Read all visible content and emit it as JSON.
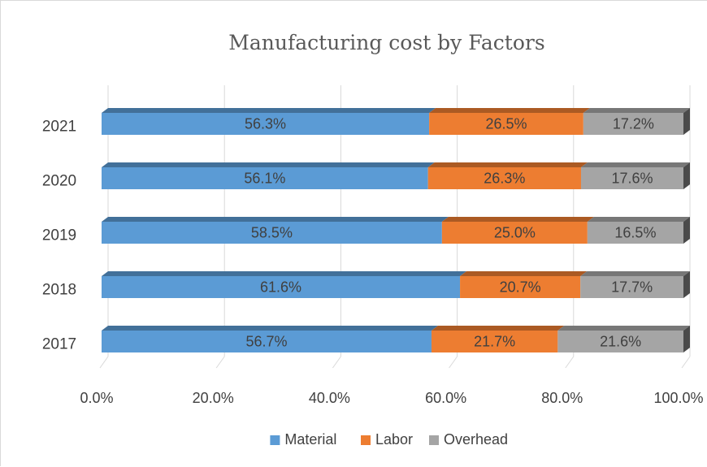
{
  "chart_data": {
    "type": "bar",
    "orientation": "horizontal",
    "stacked": "percent",
    "title": "Manufacturing cost by Factors",
    "categories": [
      "2021",
      "2020",
      "2019",
      "2018",
      "2017"
    ],
    "series": [
      {
        "name": "Material",
        "color": "#5b9bd5",
        "values": [
          56.3,
          56.1,
          58.5,
          61.6,
          56.7
        ],
        "labels": [
          "56.3%",
          "56.1%",
          "58.5%",
          "61.6%",
          "56.7%"
        ]
      },
      {
        "name": "Labor",
        "color": "#ed7d31",
        "values": [
          26.5,
          26.3,
          25.0,
          20.7,
          21.7
        ],
        "labels": [
          "26.5%",
          "26.3%",
          "25.0%",
          "20.7%",
          "21.7%"
        ]
      },
      {
        "name": "Overhead",
        "color": "#a5a5a5",
        "values": [
          17.2,
          17.6,
          16.5,
          17.7,
          21.6
        ],
        "labels": [
          "17.2%",
          "17.6%",
          "16.5%",
          "17.7%",
          "21.6%"
        ]
      }
    ],
    "xlim": [
      0,
      100
    ],
    "xticks": [
      "0.0%",
      "20.0%",
      "40.0%",
      "60.0%",
      "80.0%",
      "100.0%"
    ],
    "grid": "vertical",
    "legend": "bottom",
    "style": "3d"
  }
}
